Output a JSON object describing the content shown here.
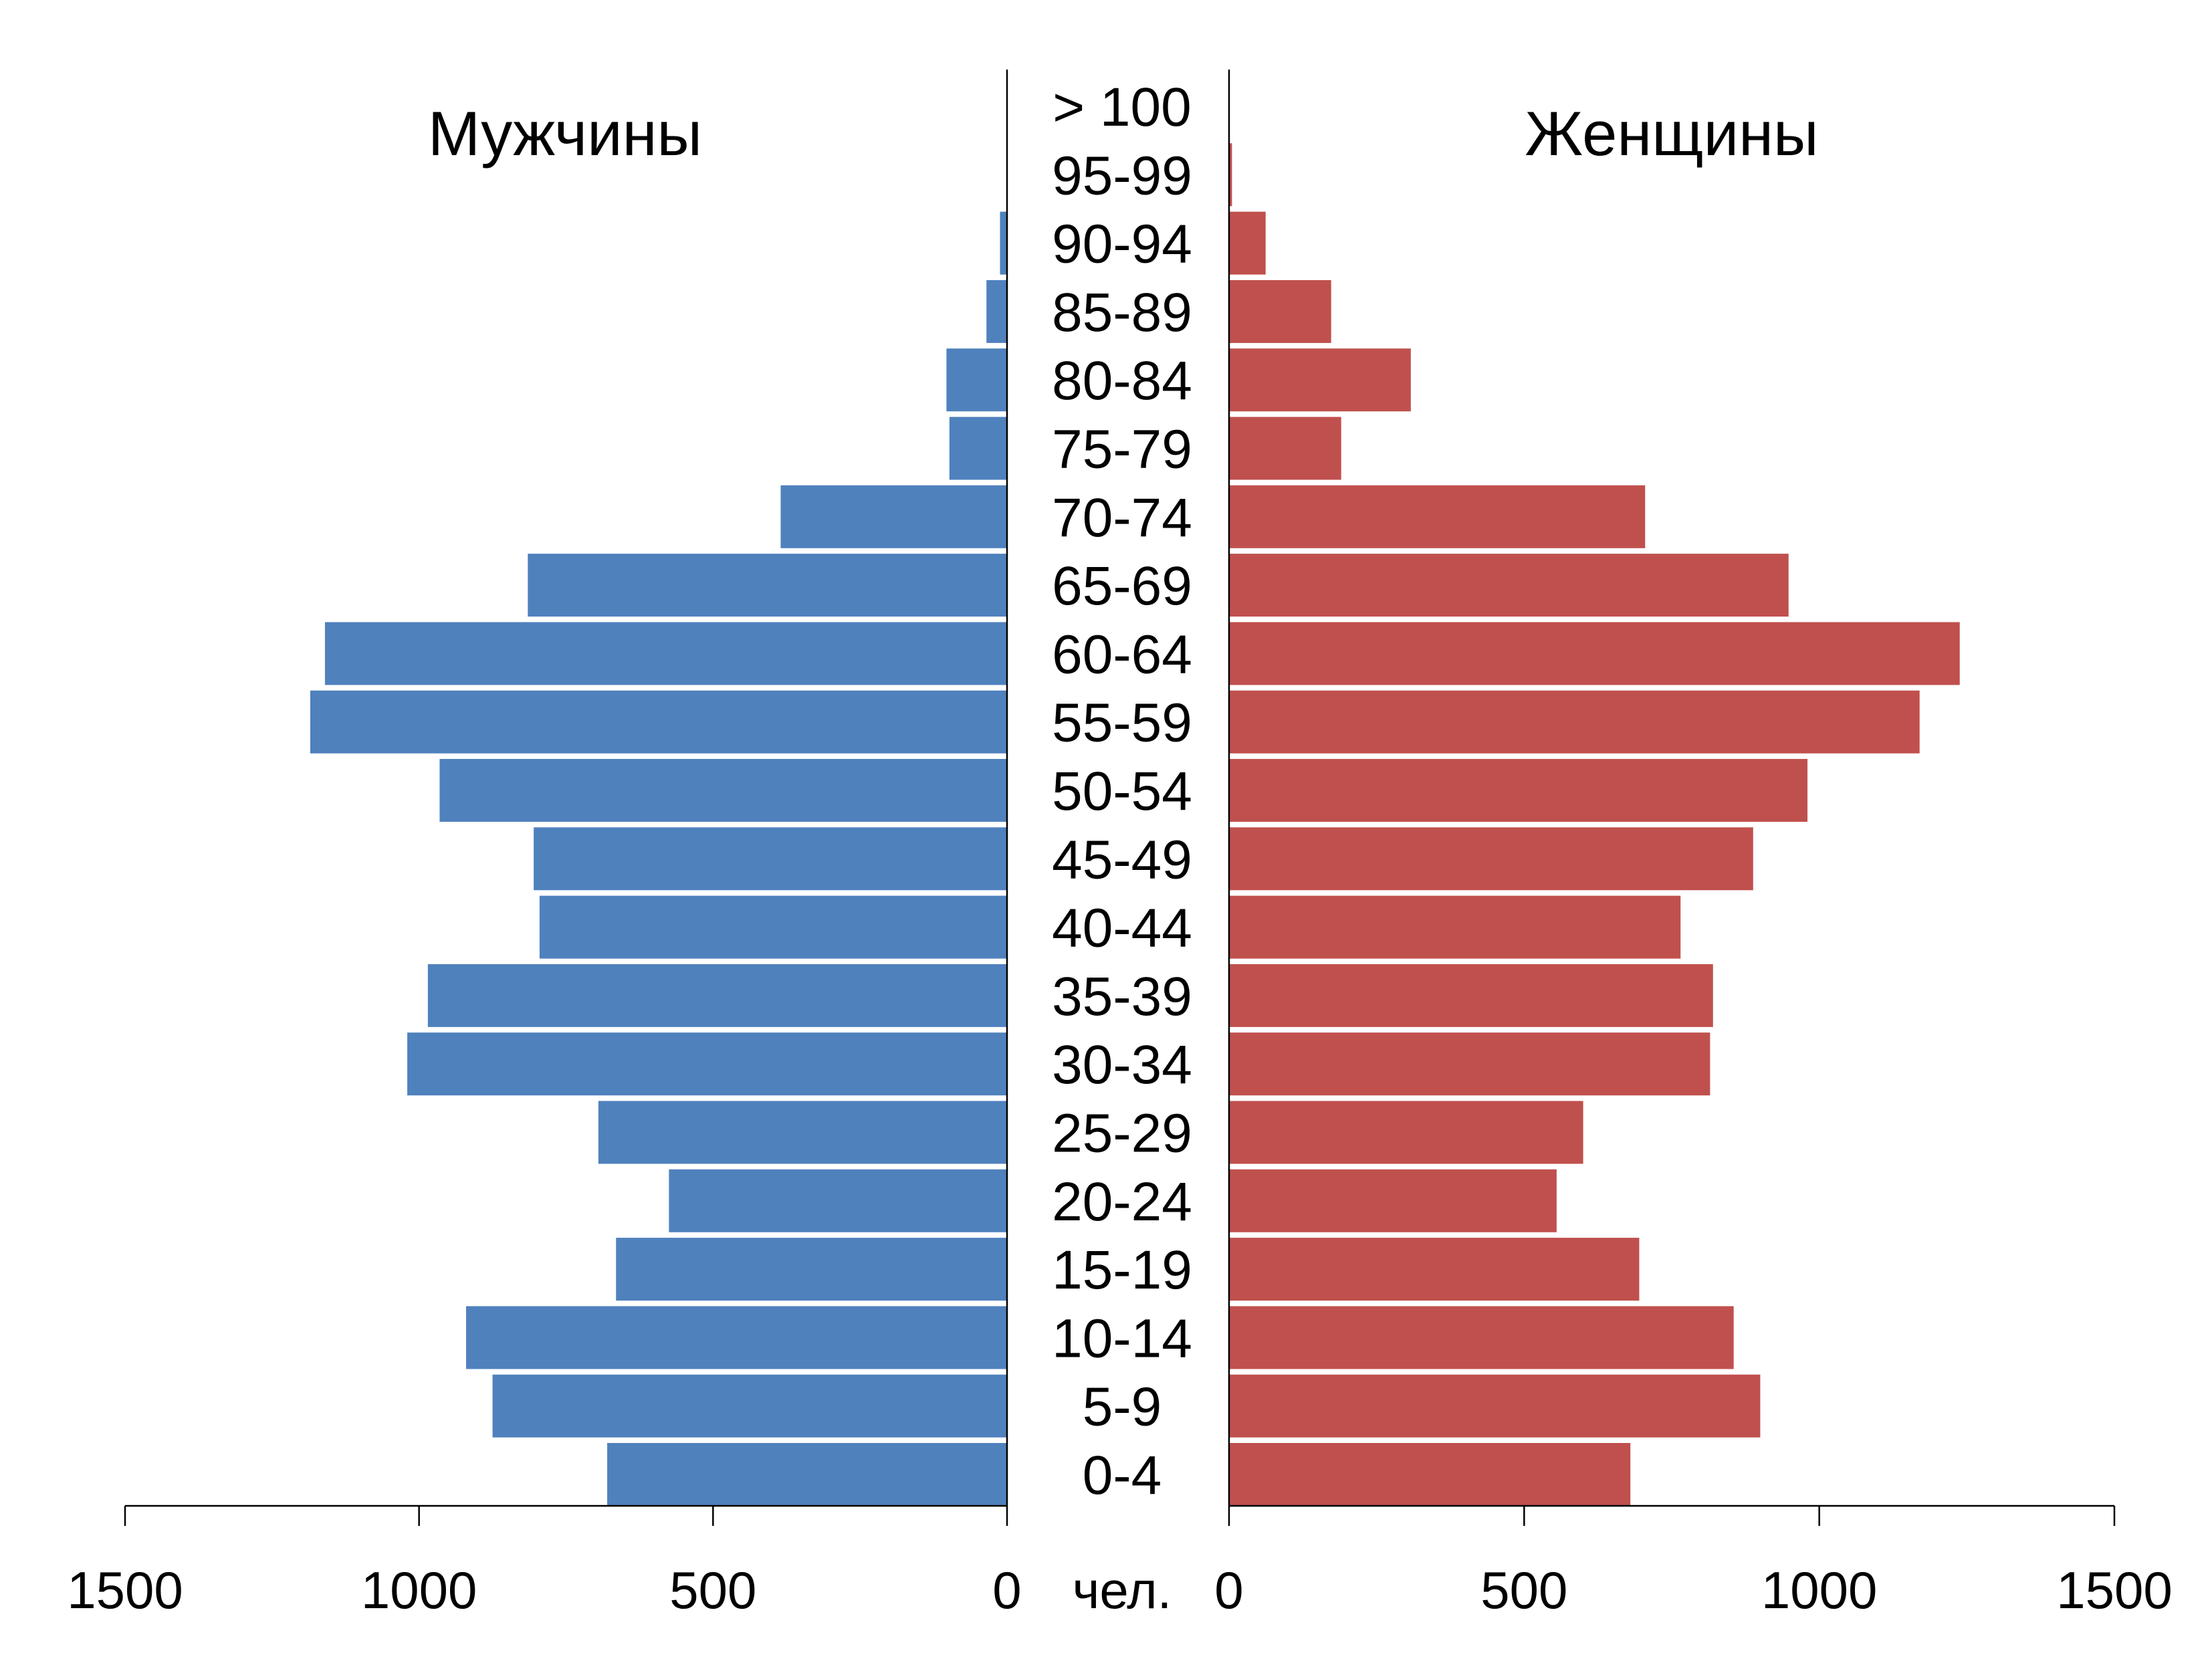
{
  "chart_data": {
    "type": "bar",
    "orientation": "horizontal",
    "layout": "population-pyramid",
    "categories": [
      "0-4",
      "5-9",
      "10-14",
      "15-19",
      "20-24",
      "25-29",
      "30-34",
      "35-39",
      "40-44",
      "45-49",
      "50-54",
      "55-59",
      "60-64",
      "65-69",
      "70-74",
      "75-79",
      "80-84",
      "85-89",
      "90-94",
      "95-99",
      "> 100"
    ],
    "series": [
      {
        "name": "Мужчины",
        "side": "left",
        "color": "#4f81bd",
        "values": [
          680,
          875,
          920,
          665,
          575,
          695,
          1020,
          985,
          795,
          805,
          965,
          1185,
          1160,
          815,
          385,
          98,
          103,
          35,
          12,
          0,
          0
        ]
      },
      {
        "name": "Женщины",
        "side": "right",
        "color": "#c0504d",
        "values": [
          680,
          900,
          855,
          695,
          555,
          600,
          815,
          820,
          765,
          888,
          980,
          1170,
          1238,
          948,
          705,
          190,
          308,
          173,
          62,
          5,
          0
        ]
      }
    ],
    "unit_label": "чел.",
    "xlim": [
      0,
      1500
    ],
    "ticks_left": [
      "1500",
      "1000",
      "500",
      "0"
    ],
    "ticks_right": [
      "0",
      "500",
      "1000",
      "1500"
    ],
    "grid": false,
    "legend": "none"
  }
}
